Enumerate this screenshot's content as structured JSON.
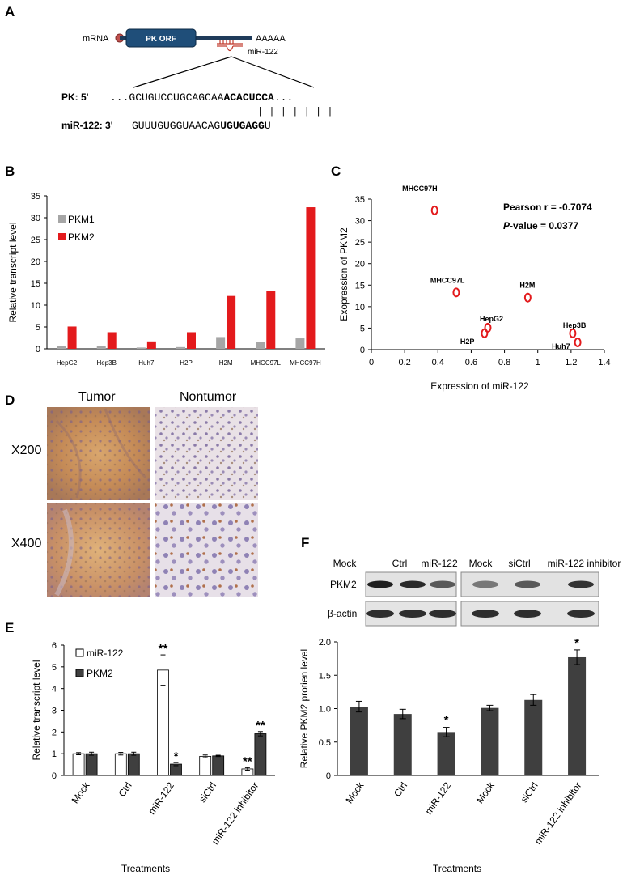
{
  "panels": {
    "a": {
      "letter": "A",
      "mrna_label": "mRNA",
      "orf_label": "PK ORF",
      "polya_label": "AAAAA",
      "mirna_site_label": "miR-122",
      "pk_label": "PK: 5'",
      "pk_prefix": "...",
      "pk_seq_plain": "GCUGUCCUGCAGCAA",
      "pk_seq_bold": "ACACUCCA",
      "pk_suffix": "...",
      "mir_label": "miR-122: 3'",
      "mir_seq_plain": "GUUUGUGGUAACAG",
      "mir_seq_bold": "UGUGAGG",
      "mir_seq_end": "U",
      "pairing_bars": "| | | | | | |"
    },
    "b": {
      "letter": "B"
    },
    "c": {
      "letter": "C"
    },
    "d": {
      "letter": "D",
      "col_tumor": "Tumor",
      "col_nontumor": "Nontumor",
      "row_x200": "X200",
      "row_x400": "X400"
    },
    "e": {
      "letter": "E"
    },
    "f": {
      "letter": "F",
      "blot_lanes": [
        "Mock",
        "Ctrl",
        "miR-122",
        "Mock",
        "siCtrl",
        "miR-122 inhibitor"
      ],
      "blot_rows": [
        "PKM2",
        "β-actin"
      ]
    }
  },
  "colors": {
    "pkm1": "#a6a6a6",
    "pkm2_red": "#e31a1c",
    "dark_bar": "#3f3f3f",
    "orf_blue": "#1f4e79",
    "scatter_red": "#e31a1c"
  },
  "chart_data": [
    {
      "id": "B",
      "type": "bar",
      "title": "",
      "xlabel": "",
      "ylabel": "Relative transcript level",
      "ylim": [
        0,
        35
      ],
      "yticks": [
        0,
        5,
        10,
        15,
        20,
        25,
        30,
        35
      ],
      "categories": [
        "HepG2",
        "Hep3B",
        "Huh7",
        "H2P",
        "H2M",
        "MHCC97L",
        "MHCC97H"
      ],
      "series": [
        {
          "name": "PKM1",
          "values": [
            0.6,
            0.6,
            0.3,
            0.4,
            2.7,
            1.6,
            2.4
          ]
        },
        {
          "name": "PKM2",
          "values": [
            5.1,
            3.8,
            1.7,
            3.8,
            12.1,
            13.3,
            32.4
          ]
        }
      ],
      "legend": "top-left",
      "grid": false
    },
    {
      "id": "C",
      "type": "scatter",
      "title": "",
      "xlabel": "Expression of miR-122",
      "ylabel": "Exopression of PKM2",
      "xlim": [
        0,
        1.4
      ],
      "ylim": [
        0,
        35
      ],
      "xticks": [
        0,
        0.2,
        0.4,
        0.6,
        0.8,
        1,
        1.2,
        1.4
      ],
      "yticks": [
        0,
        5,
        10,
        15,
        20,
        25,
        30,
        35
      ],
      "points": [
        {
          "label": "MHCC97H",
          "x": 0.38,
          "y": 32.4
        },
        {
          "label": "MHCC97L",
          "x": 0.51,
          "y": 13.3
        },
        {
          "label": "H2M",
          "x": 0.94,
          "y": 12.1
        },
        {
          "label": "HepG2",
          "x": 0.7,
          "y": 5.1
        },
        {
          "label": "H2P",
          "x": 0.68,
          "y": 3.8
        },
        {
          "label": "Hep3B",
          "x": 1.21,
          "y": 3.8
        },
        {
          "label": "Huh7",
          "x": 1.24,
          "y": 1.7
        }
      ],
      "annotations": [
        "Pearson r = -0.7074",
        "P-value = 0.0377"
      ],
      "grid": false
    },
    {
      "id": "E",
      "type": "bar",
      "title": "",
      "xlabel": "Treatments",
      "ylabel": "Relative transcript level",
      "ylim": [
        0,
        6
      ],
      "yticks": [
        0,
        1,
        2,
        3,
        4,
        5,
        6
      ],
      "categories": [
        "Mock",
        "Ctrl",
        "miR-122",
        "siCtrl",
        "miR-122 inhibitor"
      ],
      "series": [
        {
          "name": "miR-122",
          "values": [
            1.0,
            1.0,
            4.85,
            0.88,
            0.3
          ],
          "errors": [
            0.05,
            0.06,
            0.7,
            0.06,
            0.06
          ],
          "significance": [
            "",
            "",
            "**",
            "",
            "**"
          ]
        },
        {
          "name": "PKM2",
          "values": [
            1.0,
            1.0,
            0.52,
            0.9,
            1.92
          ],
          "errors": [
            0.07,
            0.07,
            0.07,
            0.03,
            0.1
          ],
          "significance": [
            "",
            "",
            "*",
            "",
            "**"
          ]
        }
      ],
      "legend": "top-left",
      "grid": false
    },
    {
      "id": "F",
      "type": "bar",
      "title": "",
      "xlabel": "Treatments",
      "ylabel": "Relative PKM2 protien level",
      "ylim": [
        0,
        2.0
      ],
      "yticks": [
        "0",
        "0.5",
        "1.0",
        "1.5",
        "2.0"
      ],
      "categories": [
        "Mock",
        "Ctrl",
        "miR-122",
        "Mock",
        "siCtrl",
        "miR-122 inhibitor"
      ],
      "values": [
        1.03,
        0.92,
        0.65,
        1.01,
        1.13,
        1.77
      ],
      "errors": [
        0.08,
        0.07,
        0.07,
        0.04,
        0.08,
        0.11
      ],
      "significance": [
        "",
        "",
        "*",
        "",
        "",
        "*"
      ],
      "grid": false
    }
  ]
}
